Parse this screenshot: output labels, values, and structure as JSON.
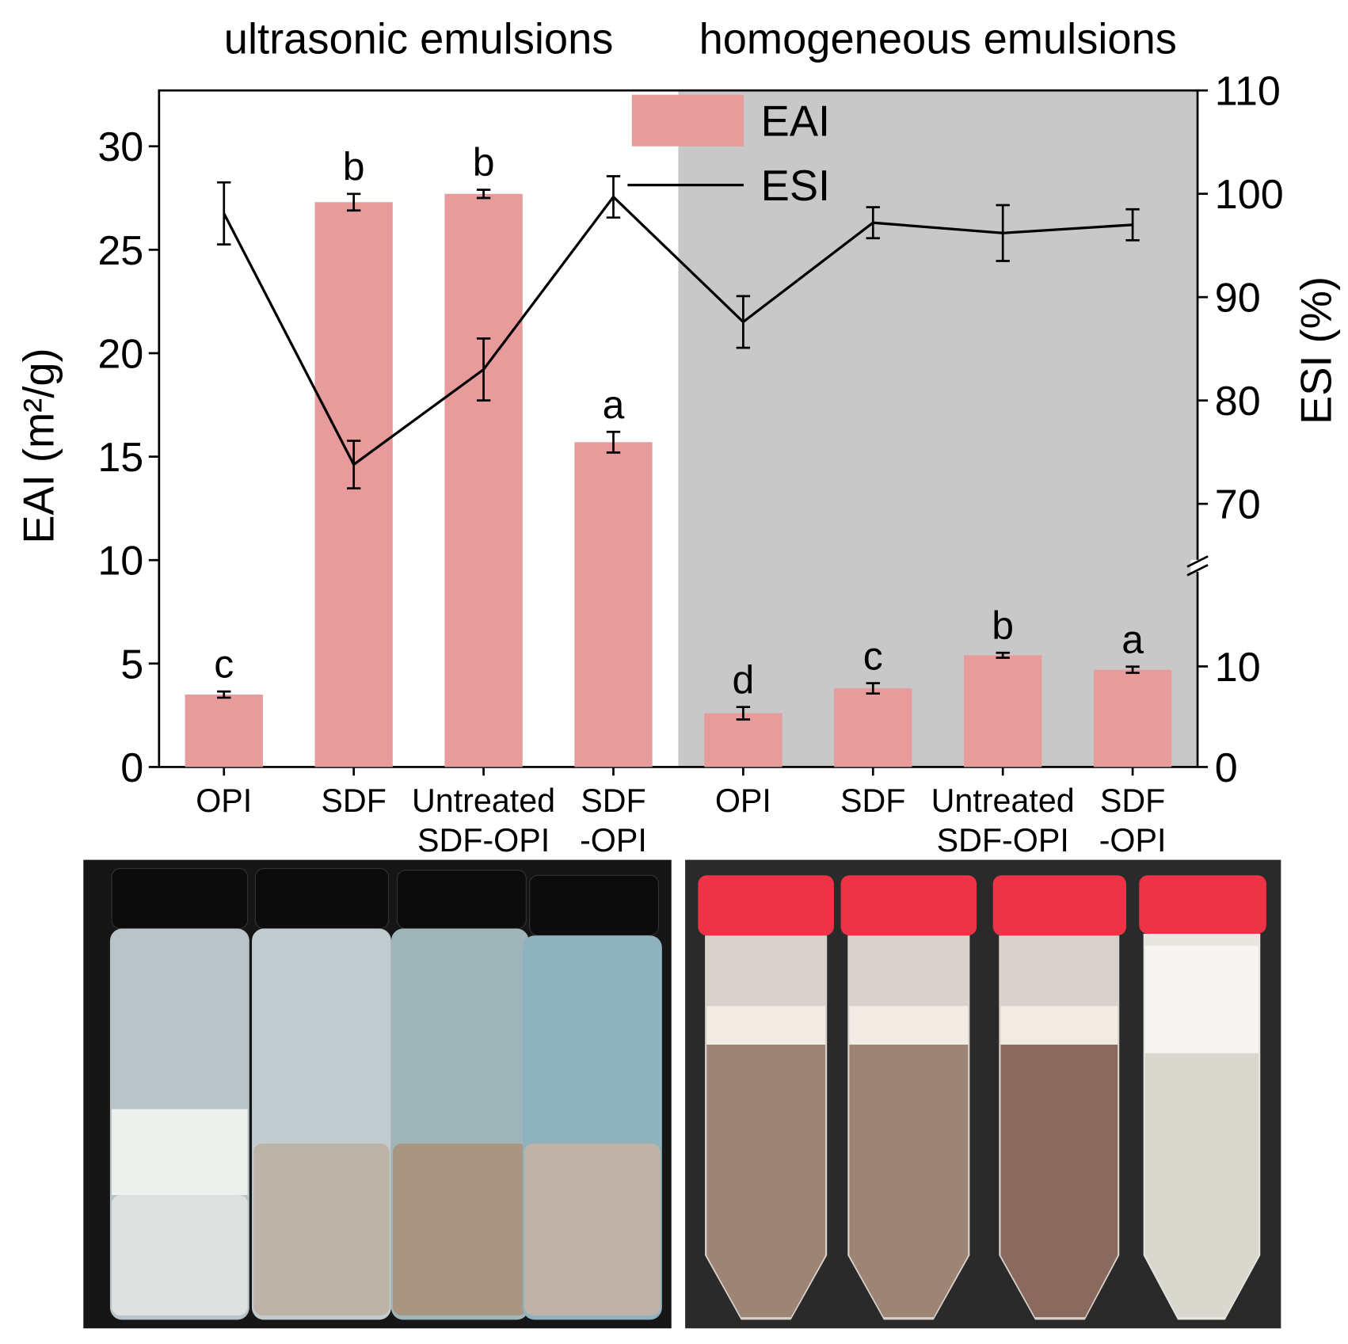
{
  "chart_data": {
    "type": "bar-line",
    "ylabel": "EAI (m²/g)",
    "y2label": "ESI (%)",
    "categories": [
      [
        "OPI"
      ],
      [
        "SDF"
      ],
      [
        "Untreated",
        "SDF-OPI"
      ],
      [
        "SDF",
        "-OPI"
      ],
      [
        "OPI"
      ],
      [
        "SDF"
      ],
      [
        "Untreated",
        "SDF-OPI"
      ],
      [
        "SDF",
        "-OPI"
      ]
    ],
    "groups": [
      {
        "label": "ultrasonic emulsions",
        "range": [
          0,
          3
        ]
      },
      {
        "label": "homogeneous emulsions",
        "range": [
          4,
          7
        ],
        "shade": "#c8c8c8"
      }
    ],
    "series": [
      {
        "name": "EAI",
        "kind": "bar",
        "color": "#e89b9b",
        "values": [
          3.5,
          27.3,
          27.7,
          15.7,
          2.6,
          3.8,
          5.4,
          4.7
        ],
        "errors": [
          0.15,
          0.4,
          0.2,
          0.5,
          0.3,
          0.25,
          0.12,
          0.15
        ],
        "letters": [
          "c",
          "b",
          "b",
          "a",
          "d",
          "c",
          "b",
          "a"
        ]
      },
      {
        "name": "ESI",
        "kind": "line",
        "color": "#000000",
        "axis": "y2",
        "values": [
          98.1,
          73.8,
          83.0,
          99.7,
          87.6,
          97.2,
          96.2,
          97.0
        ],
        "errors": [
          3.0,
          2.3,
          3.0,
          2.0,
          2.5,
          1.5,
          2.7,
          1.5
        ]
      }
    ],
    "ylim": [
      0,
      32.7
    ],
    "yticks": [
      0,
      5,
      10,
      15,
      20,
      25,
      30
    ],
    "y2lim": [
      0,
      110
    ],
    "y2break": [
      20,
      64
    ],
    "y2ticks": [
      0,
      10,
      70,
      80,
      90,
      100,
      110
    ],
    "legend": "top"
  }
}
